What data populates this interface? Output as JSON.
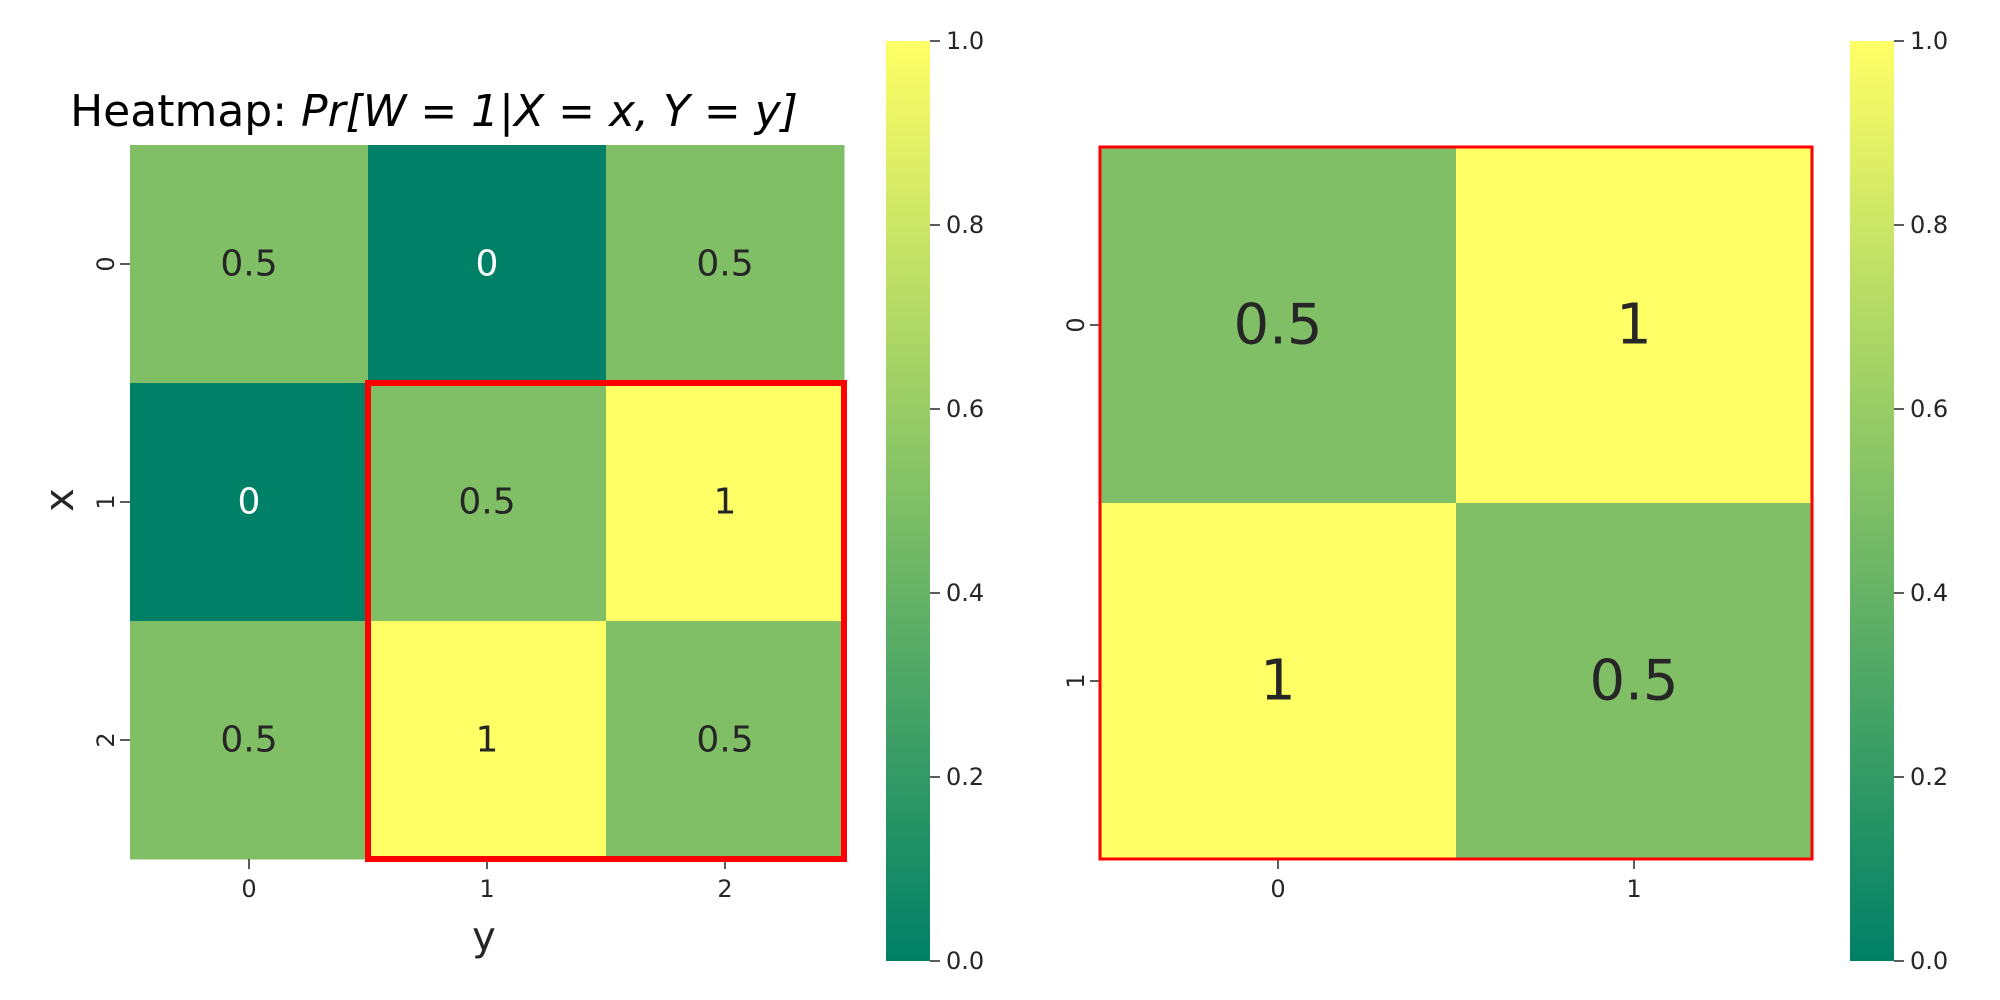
{
  "chart_data": [
    {
      "type": "heatmap",
      "title_prefix": "Heatmap: ",
      "title_math": "Pr[W = 1|X = x, Y = y]",
      "xlabel": "y",
      "ylabel": "x",
      "x_ticks": [
        "0",
        "1",
        "2"
      ],
      "y_ticks": [
        "0",
        "1",
        "2"
      ],
      "values": [
        [
          0.5,
          0,
          0.5
        ],
        [
          0,
          0.5,
          1
        ],
        [
          0.5,
          1,
          0.5
        ]
      ],
      "annotations": [
        [
          "0.5",
          "0",
          "0.5"
        ],
        [
          "0",
          "0.5",
          "1"
        ],
        [
          "0.5",
          "1",
          "0.5"
        ]
      ],
      "highlight": {
        "rows": [
          1,
          2
        ],
        "cols": [
          1,
          2
        ],
        "color": "#ff0000"
      },
      "colorbar": {
        "min": 0.0,
        "max": 1.0,
        "ticks": [
          "0.0",
          "0.2",
          "0.4",
          "0.6",
          "0.8",
          "1.0"
        ]
      },
      "colormap": "summer"
    },
    {
      "type": "heatmap",
      "x_ticks": [
        "0",
        "1"
      ],
      "y_ticks": [
        "0",
        "1"
      ],
      "values": [
        [
          0.5,
          1
        ],
        [
          1,
          0.5
        ]
      ],
      "annotations": [
        [
          "0.5",
          "1"
        ],
        [
          "1",
          "0.5"
        ]
      ],
      "highlight": {
        "rows": [
          0,
          1
        ],
        "cols": [
          0,
          1
        ],
        "color": "#ff0000"
      },
      "colorbar": {
        "min": 0.0,
        "max": 1.0,
        "ticks": [
          "0.0",
          "0.2",
          "0.4",
          "0.6",
          "0.8",
          "1.0"
        ]
      },
      "colormap": "summer"
    }
  ]
}
